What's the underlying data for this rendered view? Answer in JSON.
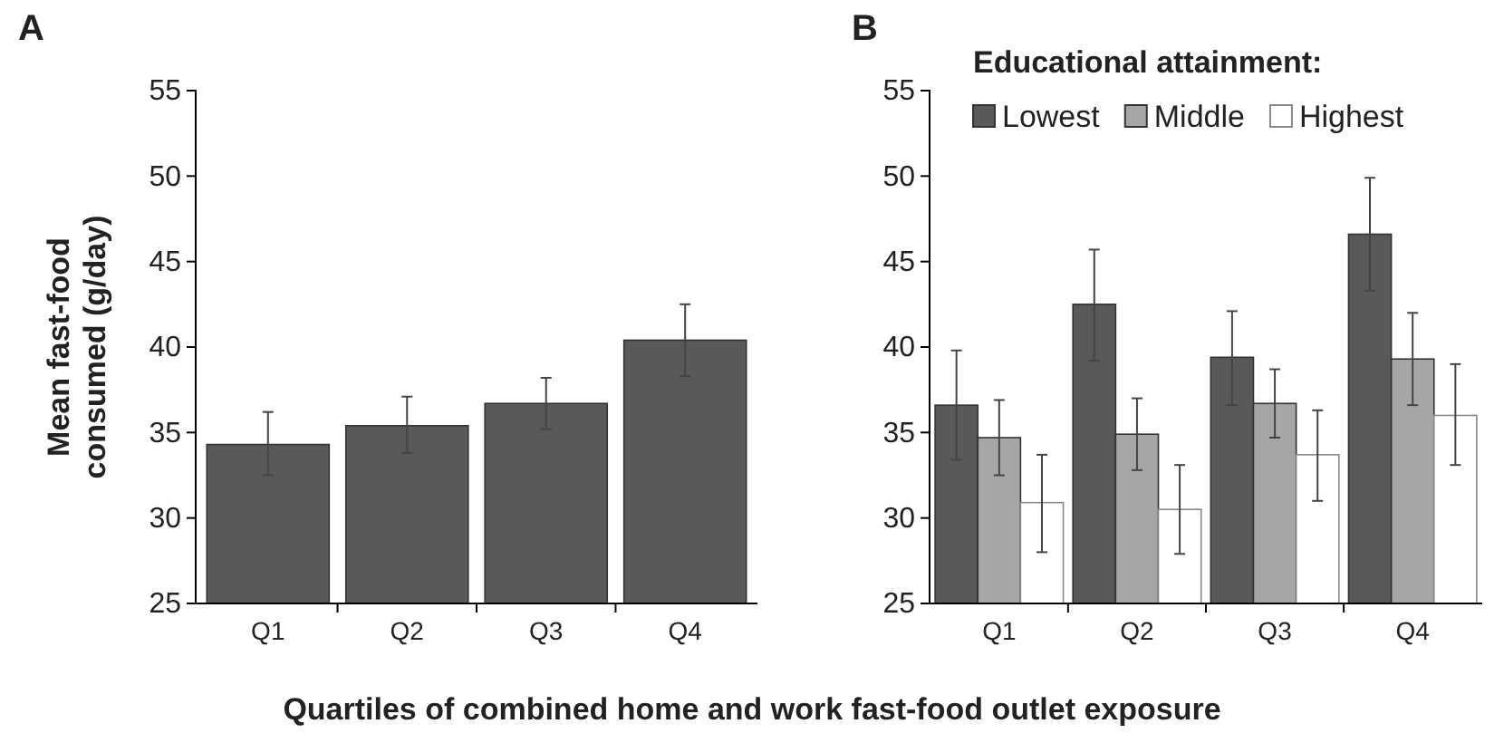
{
  "chart_data": [
    {
      "type": "bar",
      "title": "A",
      "xlabel": "Quartiles of combined home and work fast-food outlet exposure",
      "ylabel": "Mean fast-food consumed (g/day)",
      "categories": [
        "Q1",
        "Q2",
        "Q3",
        "Q4"
      ],
      "values": [
        34.3,
        35.4,
        36.7,
        40.4
      ],
      "errors": [
        [
          32.5,
          36.2
        ],
        [
          33.8,
          37.1
        ],
        [
          35.2,
          38.2
        ],
        [
          38.3,
          42.5
        ]
      ],
      "color": "#595959",
      "ylim": [
        25,
        55
      ],
      "yticks": [
        25,
        30,
        35,
        40,
        45,
        50,
        55
      ]
    },
    {
      "type": "bar",
      "title": "B",
      "legend_title": "Educational attainment:",
      "legend": "top",
      "categories": [
        "Q1",
        "Q2",
        "Q3",
        "Q4"
      ],
      "ylim": [
        25,
        55
      ],
      "yticks": [
        25,
        30,
        35,
        40,
        45,
        50,
        55
      ],
      "series": [
        {
          "name": "Lowest",
          "color": "#595959",
          "values": [
            36.6,
            42.5,
            39.4,
            46.6
          ],
          "errors": [
            [
              33.4,
              39.8
            ],
            [
              39.2,
              45.7
            ],
            [
              36.6,
              42.1
            ],
            [
              43.3,
              49.9
            ]
          ]
        },
        {
          "name": "Middle",
          "color": "#a6a6a6",
          "values": [
            34.7,
            34.9,
            36.7,
            39.3
          ],
          "errors": [
            [
              32.5,
              36.9
            ],
            [
              32.8,
              37.0
            ],
            [
              34.7,
              38.7
            ],
            [
              36.6,
              42.0
            ]
          ]
        },
        {
          "name": "Highest",
          "color": "#ffffff",
          "values": [
            30.9,
            30.5,
            33.7,
            36.0
          ],
          "errors": [
            [
              28.0,
              33.7
            ],
            [
              27.9,
              33.1
            ],
            [
              31.0,
              36.3
            ],
            [
              33.1,
              39.0
            ]
          ]
        }
      ]
    }
  ]
}
